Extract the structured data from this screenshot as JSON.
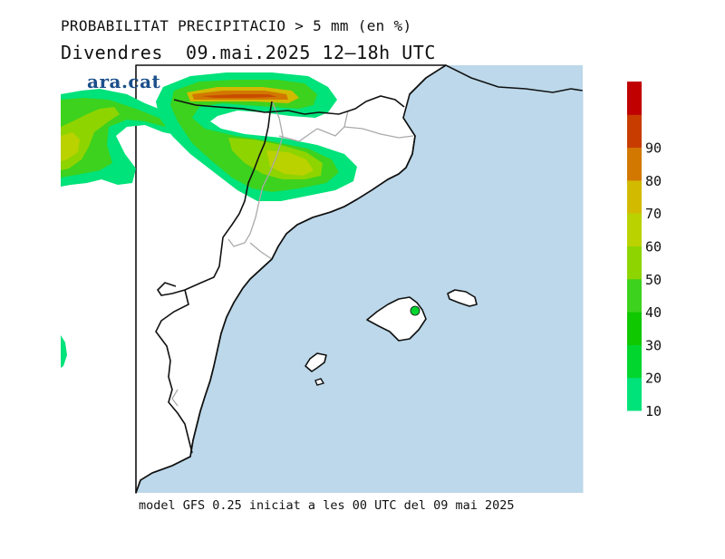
{
  "title": "PROBABILITAT PRECIPITACIO > 5 mm (en %)",
  "subtitle": "Divendres  09.mai.2025 12–18h UTC",
  "logo_text": "ara.cat",
  "footer": "model GFS 0.25 iniciat a les 00 UTC del 09 mai 2025",
  "colors": {
    "sea": "#bcd8ea",
    "land": "#ffffff",
    "coast": "#111111",
    "border": "#aaaaaa"
  },
  "legend": {
    "levels": [
      {
        "value": "10",
        "color": "#00e27a"
      },
      {
        "value": "20",
        "color": "#00d62e"
      },
      {
        "value": "30",
        "color": "#10c800"
      },
      {
        "value": "40",
        "color": "#3cd21e"
      },
      {
        "value": "50",
        "color": "#8ed400"
      },
      {
        "value": "60",
        "color": "#b9d200"
      },
      {
        "value": "70",
        "color": "#d2ba00"
      },
      {
        "value": "80",
        "color": "#d27800"
      },
      {
        "value": "90",
        "color": "#c83c00"
      },
      {
        "value": "",
        "color": "#c00000"
      }
    ]
  }
}
